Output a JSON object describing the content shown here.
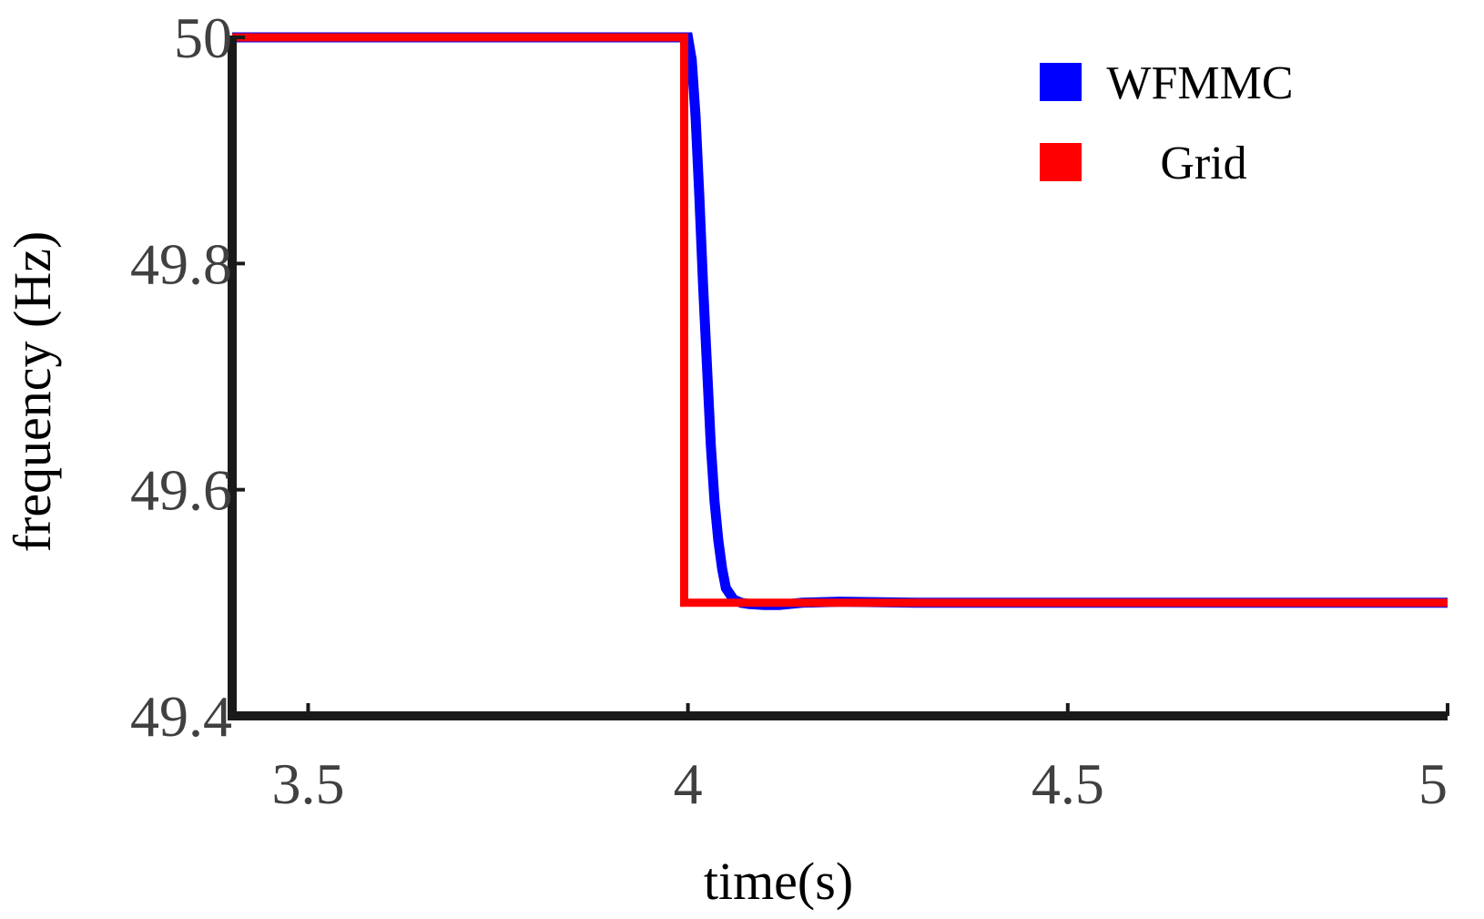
{
  "chart_data": {
    "type": "line",
    "title": "",
    "xlabel": "time(s)",
    "ylabel": "frequency (Hz)",
    "xlim": [
      3.4,
      5.0
    ],
    "ylim": [
      49.4,
      50.0
    ],
    "xticks": [
      3.5,
      4,
      4.5,
      5
    ],
    "xtick_labels": [
      "3.5",
      "4",
      "4.5",
      "5"
    ],
    "yticks": [
      49.4,
      49.6,
      49.8,
      50
    ],
    "ytick_labels": [
      "49.4",
      "49.6",
      "49.8",
      "50"
    ],
    "grid": false,
    "legend_position": "top-right",
    "series": [
      {
        "name": "WFMMC",
        "color": "#0000ff",
        "x": [
          3.4,
          4.0,
          4.005,
          4.01,
          4.015,
          4.02,
          4.025,
          4.03,
          4.035,
          4.04,
          4.045,
          4.05,
          4.06,
          4.07,
          4.08,
          4.1,
          4.12,
          4.15,
          4.2,
          4.3,
          5.0
        ],
        "y": [
          50.0,
          50.0,
          49.98,
          49.93,
          49.86,
          49.78,
          49.71,
          49.64,
          49.59,
          49.555,
          49.53,
          49.513,
          49.503,
          49.5,
          49.499,
          49.498,
          49.498,
          49.5,
          49.501,
          49.5,
          49.5
        ]
      },
      {
        "name": "Grid",
        "color": "#ff0000",
        "x": [
          3.4,
          3.995,
          3.995,
          5.0
        ],
        "y": [
          50.0,
          50.0,
          49.5,
          49.5
        ]
      }
    ]
  }
}
